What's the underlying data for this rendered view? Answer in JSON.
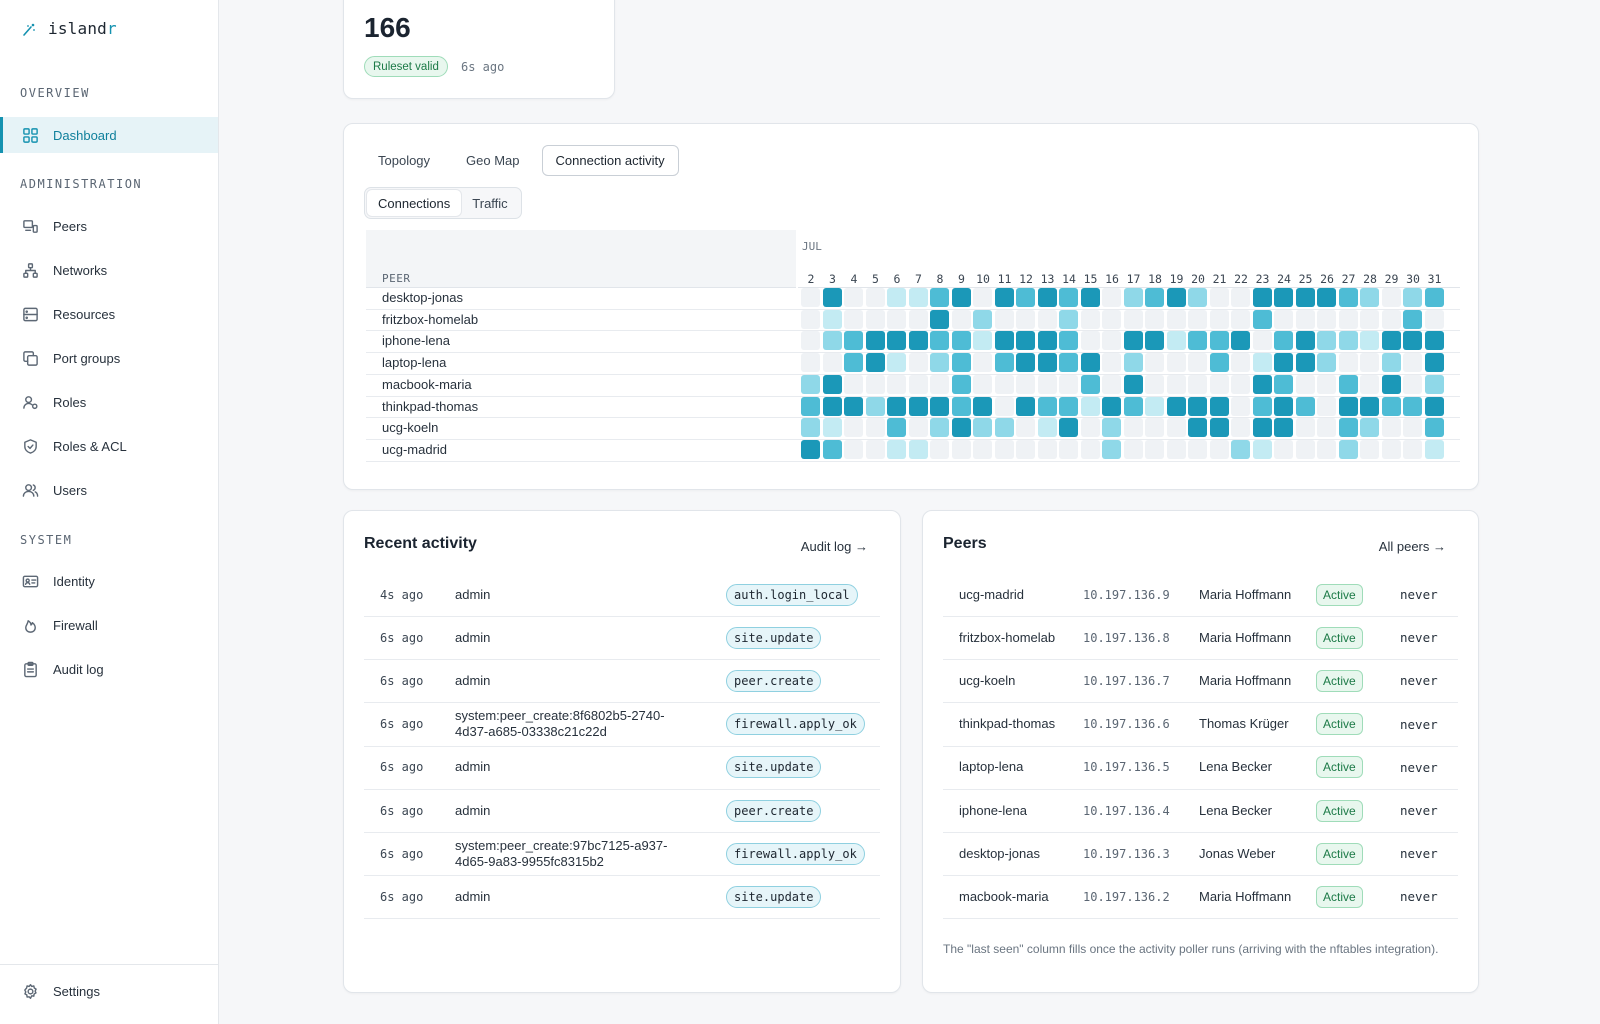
{
  "brand": {
    "name_main": "island",
    "name_accent": "r"
  },
  "sidebar": {
    "overview_label": "OVERVIEW",
    "administration_label": "ADMINISTRATION",
    "system_label": "SYSTEM",
    "items": {
      "dashboard": "Dashboard",
      "peers": "Peers",
      "networks": "Networks",
      "resources": "Resources",
      "port_groups": "Port groups",
      "roles": "Roles",
      "roles_acl": "Roles & ACL",
      "users": "Users",
      "identity": "Identity",
      "firewall": "Firewall",
      "audit_log": "Audit log",
      "settings": "Settings"
    },
    "active": "dashboard"
  },
  "stat": {
    "value": "166",
    "badge": "Ruleset valid",
    "time": "6s ago"
  },
  "activity": {
    "tabs": [
      "Topology",
      "Geo Map",
      "Connection activity"
    ],
    "active_tab": 2,
    "subtabs": [
      "Connections",
      "Traffic"
    ],
    "active_subtab": 0,
    "month": "JUL",
    "peer_header": "PEER",
    "days": [
      "2",
      "3",
      "4",
      "5",
      "6",
      "7",
      "8",
      "9",
      "10",
      "11",
      "12",
      "13",
      "14",
      "15",
      "16",
      "17",
      "18",
      "19",
      "20",
      "21",
      "22",
      "23",
      "24",
      "25",
      "26",
      "27",
      "28",
      "29",
      "30",
      "31"
    ],
    "rows": [
      {
        "peer": "desktop-jonas",
        "levels": [
          0,
          4,
          0,
          0,
          1,
          1,
          3,
          4,
          0,
          4,
          3,
          4,
          3,
          4,
          0,
          2,
          3,
          4,
          2,
          0,
          0,
          4,
          4,
          4,
          4,
          3,
          2,
          0,
          2,
          3
        ]
      },
      {
        "peer": "fritzbox-homelab",
        "levels": [
          0,
          1,
          0,
          0,
          0,
          0,
          4,
          0,
          2,
          0,
          0,
          0,
          2,
          0,
          0,
          0,
          0,
          0,
          0,
          0,
          0,
          3,
          0,
          0,
          0,
          0,
          0,
          0,
          3,
          0
        ]
      },
      {
        "peer": "iphone-lena",
        "levels": [
          0,
          2,
          3,
          4,
          4,
          4,
          3,
          3,
          1,
          4,
          4,
          4,
          3,
          0,
          0,
          4,
          4,
          1,
          3,
          3,
          4,
          0,
          3,
          4,
          2,
          2,
          1,
          4,
          4,
          4
        ]
      },
      {
        "peer": "laptop-lena",
        "levels": [
          0,
          0,
          3,
          4,
          1,
          0,
          2,
          3,
          0,
          3,
          4,
          4,
          3,
          4,
          0,
          2,
          0,
          0,
          0,
          3,
          0,
          1,
          4,
          4,
          2,
          0,
          0,
          2,
          0,
          4
        ]
      },
      {
        "peer": "macbook-maria",
        "levels": [
          2,
          4,
          0,
          0,
          0,
          0,
          0,
          3,
          0,
          0,
          0,
          0,
          0,
          3,
          0,
          4,
          0,
          0,
          0,
          0,
          0,
          4,
          3,
          0,
          0,
          3,
          0,
          4,
          0,
          2
        ]
      },
      {
        "peer": "thinkpad-thomas",
        "levels": [
          3,
          4,
          4,
          2,
          4,
          4,
          4,
          3,
          4,
          0,
          4,
          3,
          3,
          1,
          4,
          3,
          1,
          4,
          4,
          4,
          0,
          3,
          4,
          3,
          0,
          4,
          4,
          3,
          3,
          4
        ]
      },
      {
        "peer": "ucg-koeln",
        "levels": [
          2,
          1,
          0,
          0,
          3,
          0,
          2,
          4,
          2,
          2,
          0,
          1,
          4,
          0,
          2,
          0,
          0,
          0,
          4,
          4,
          0,
          4,
          4,
          0,
          0,
          3,
          2,
          0,
          0,
          3
        ]
      },
      {
        "peer": "ucg-madrid",
        "levels": [
          4,
          3,
          0,
          0,
          1,
          1,
          0,
          0,
          0,
          0,
          0,
          0,
          0,
          0,
          2,
          0,
          0,
          0,
          0,
          0,
          2,
          1,
          0,
          0,
          0,
          2,
          0,
          0,
          0,
          1
        ]
      }
    ]
  },
  "recent": {
    "title": "Recent activity",
    "link": "Audit log →",
    "rows": [
      {
        "time": "4s ago",
        "actor": "admin",
        "event": "auth.login_local"
      },
      {
        "time": "6s ago",
        "actor": "admin",
        "event": "site.update"
      },
      {
        "time": "6s ago",
        "actor": "admin",
        "event": "peer.create"
      },
      {
        "time": "6s ago",
        "actor": "system:peer_create:8f6802b5-2740-4d37-a685-03338c21c22d",
        "event": "firewall.apply_ok"
      },
      {
        "time": "6s ago",
        "actor": "admin",
        "event": "site.update"
      },
      {
        "time": "6s ago",
        "actor": "admin",
        "event": "peer.create"
      },
      {
        "time": "6s ago",
        "actor": "system:peer_create:97bc7125-a937-4d65-9a83-9955fc8315b2",
        "event": "firewall.apply_ok"
      },
      {
        "time": "6s ago",
        "actor": "admin",
        "event": "site.update"
      }
    ]
  },
  "peers": {
    "title": "Peers",
    "link": "All peers →",
    "rows": [
      {
        "name": "ucg-madrid",
        "ip": "10.197.136.9",
        "owner": "Maria Hoffmann",
        "status": "Active",
        "seen": "never"
      },
      {
        "name": "fritzbox-homelab",
        "ip": "10.197.136.8",
        "owner": "Maria Hoffmann",
        "status": "Active",
        "seen": "never"
      },
      {
        "name": "ucg-koeln",
        "ip": "10.197.136.7",
        "owner": "Maria Hoffmann",
        "status": "Active",
        "seen": "never"
      },
      {
        "name": "thinkpad-thomas",
        "ip": "10.197.136.6",
        "owner": "Thomas Krüger",
        "status": "Active",
        "seen": "never"
      },
      {
        "name": "laptop-lena",
        "ip": "10.197.136.5",
        "owner": "Lena Becker",
        "status": "Active",
        "seen": "never"
      },
      {
        "name": "iphone-lena",
        "ip": "10.197.136.4",
        "owner": "Lena Becker",
        "status": "Active",
        "seen": "never"
      },
      {
        "name": "desktop-jonas",
        "ip": "10.197.136.3",
        "owner": "Jonas Weber",
        "status": "Active",
        "seen": "never"
      },
      {
        "name": "macbook-maria",
        "ip": "10.197.136.2",
        "owner": "Maria Hoffmann",
        "status": "Active",
        "seen": "never"
      }
    ],
    "note": "The \"last seen\" column fills once the activity poller runs (arriving with the nftables integration)."
  },
  "colors": {
    "accent": "#1592b0",
    "success": "#1c7a47"
  }
}
